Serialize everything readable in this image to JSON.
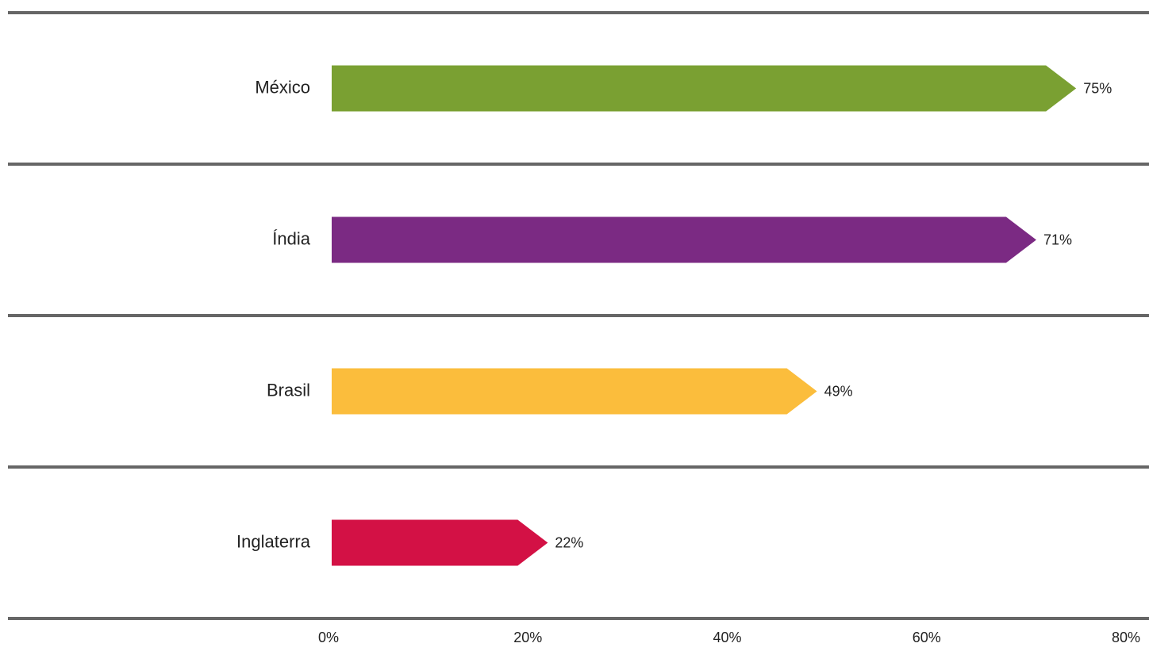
{
  "chart_data": {
    "type": "bar",
    "orientation": "horizontal",
    "categories": [
      "México",
      "Índia",
      "Brasil",
      "Inglaterra"
    ],
    "values": [
      75,
      71,
      49,
      22
    ],
    "value_labels": [
      "75%",
      "71%",
      "49%",
      "22%"
    ],
    "colors": [
      "#7aa032",
      "#7b2a83",
      "#fbbd3c",
      "#d31145"
    ],
    "xlim": [
      0,
      80
    ],
    "xticks": [
      {
        "value": 0,
        "label": "0%"
      },
      {
        "value": 20,
        "label": "20%"
      },
      {
        "value": 40,
        "label": "40%"
      },
      {
        "value": 60,
        "label": "60%"
      },
      {
        "value": 80,
        "label": "80%"
      }
    ],
    "grid": false
  }
}
